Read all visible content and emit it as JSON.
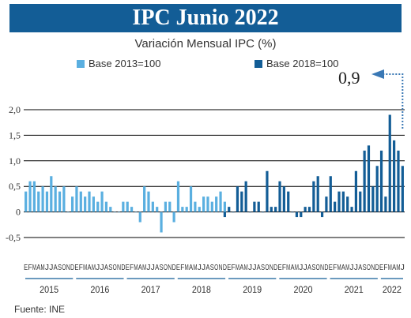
{
  "header": {
    "title": "IPC Junio 2022",
    "subtitle": "Variación Mensual IPC (%)"
  },
  "legend": [
    {
      "label": "Base 2013=100",
      "color": "#5aafe0"
    },
    {
      "label": "Base 2018=100",
      "color": "#135d96"
    }
  ],
  "callout": {
    "text": "0,9"
  },
  "source": "Fuente: INE",
  "colors": {
    "banner": "#135d96",
    "base2013": "#5aafe0",
    "base2018": "#135d96",
    "callout_arrow": "#3a78b5"
  },
  "chart_data": {
    "type": "bar",
    "title": "Variación Mensual IPC (%)",
    "ylim": [
      -0.5,
      2.0
    ],
    "yticks": [
      "-0,5",
      "0",
      "0,5",
      "1,0",
      "1,5",
      "2,0"
    ],
    "ytick_values": [
      -0.5,
      0,
      0.5,
      1.0,
      1.5,
      2.0
    ],
    "grid": true,
    "month_letters": [
      "E",
      "F",
      "M",
      "A",
      "M",
      "J",
      "J",
      "A",
      "S",
      "O",
      "N",
      "D"
    ],
    "years": [
      "2015",
      "2016",
      "2017",
      "2018",
      "2019",
      "2020",
      "2021",
      "2022"
    ],
    "series": [
      {
        "name": "Base 2013=100",
        "start": "2015-01",
        "values": [
          0.4,
          0.6,
          0.6,
          0.4,
          0.5,
          0.4,
          0.7,
          0.5,
          0.4,
          0.5,
          0,
          0.3,
          0.5,
          0.4,
          0.3,
          0.4,
          0.3,
          0.2,
          0.4,
          0.2,
          0.1,
          0,
          0,
          0.2,
          0.2,
          0.1,
          0,
          -0.2,
          0.5,
          0.4,
          0.2,
          0.1,
          -0.4,
          0.2,
          0.2,
          -0.2,
          0.6,
          0.1,
          0.1,
          0.5,
          0.2,
          0.1,
          0.3,
          0.3,
          0.2,
          0.3,
          0.4,
          0.2
        ]
      },
      {
        "name": "Base 2018=100",
        "start": "2018-12",
        "values": [
          -0.1,
          0.1,
          0,
          0.5,
          0.4,
          0.6,
          0,
          0.2,
          0.2,
          0,
          0.8,
          0.1,
          0.1,
          0.6,
          0.5,
          0.4,
          0,
          -0.1,
          -0.1,
          0.1,
          0.1,
          0.6,
          0.7,
          -0.1,
          0.3,
          0.7,
          0.2,
          0.4,
          0.4,
          0.3,
          0.1,
          0.8,
          0.4,
          1.2,
          1.3,
          0.5,
          0.9,
          1.2,
          0.3,
          1.9,
          1.4,
          1.2,
          0.9
        ]
      }
    ],
    "annotations": [
      {
        "text": "0,9",
        "target": "2022-06"
      }
    ]
  }
}
